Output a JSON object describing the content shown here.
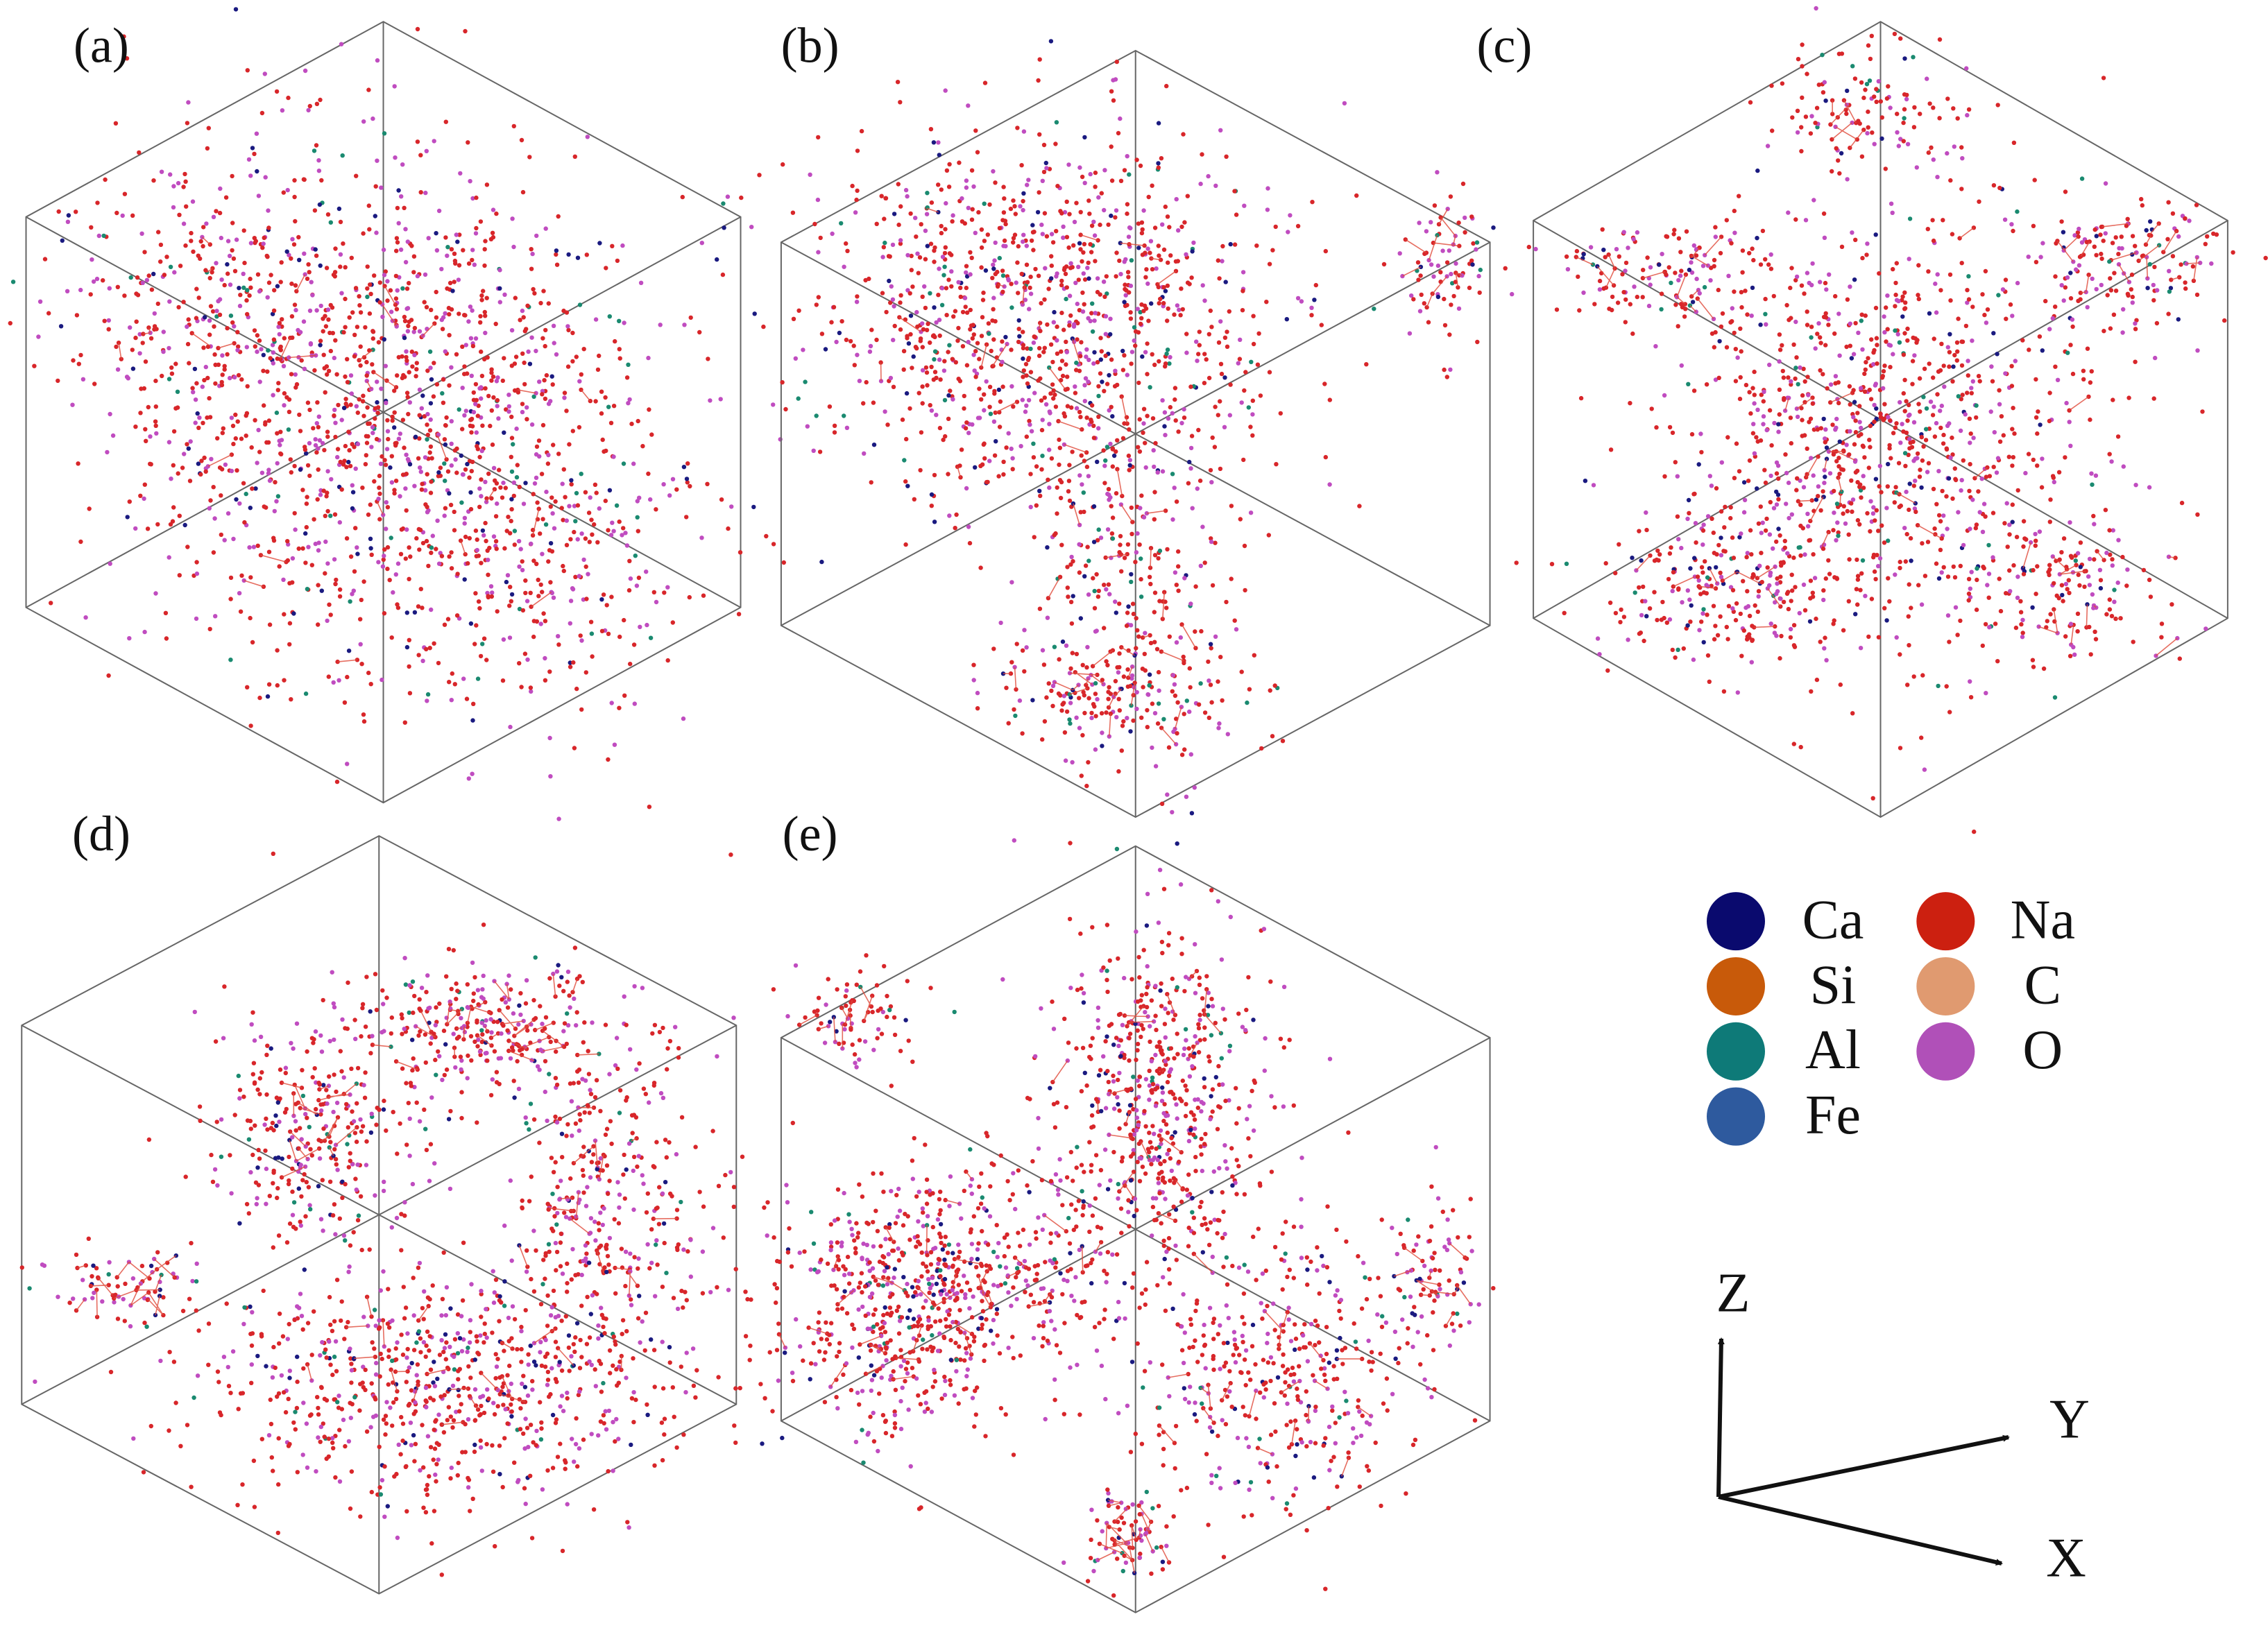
{
  "panels": [
    {
      "label": "(a)"
    },
    {
      "label": "(b)"
    },
    {
      "label": "(c)"
    },
    {
      "label": "(d)"
    },
    {
      "label": "(e)"
    }
  ],
  "legend": [
    {
      "label": "Ca",
      "color": "#0a0a6e"
    },
    {
      "label": "Si",
      "color": "#c85a0a"
    },
    {
      "label": "Al",
      "color": "#0e7a78"
    },
    {
      "label": "Fe",
      "color": "#2e5a9e"
    },
    {
      "label": "Na",
      "color": "#cc2010"
    },
    {
      "label": "C",
      "color": "#e09a70"
    },
    {
      "label": "O",
      "color": "#b050b8"
    }
  ],
  "axes": {
    "z": "Z",
    "y": "Y",
    "x": "X"
  }
}
